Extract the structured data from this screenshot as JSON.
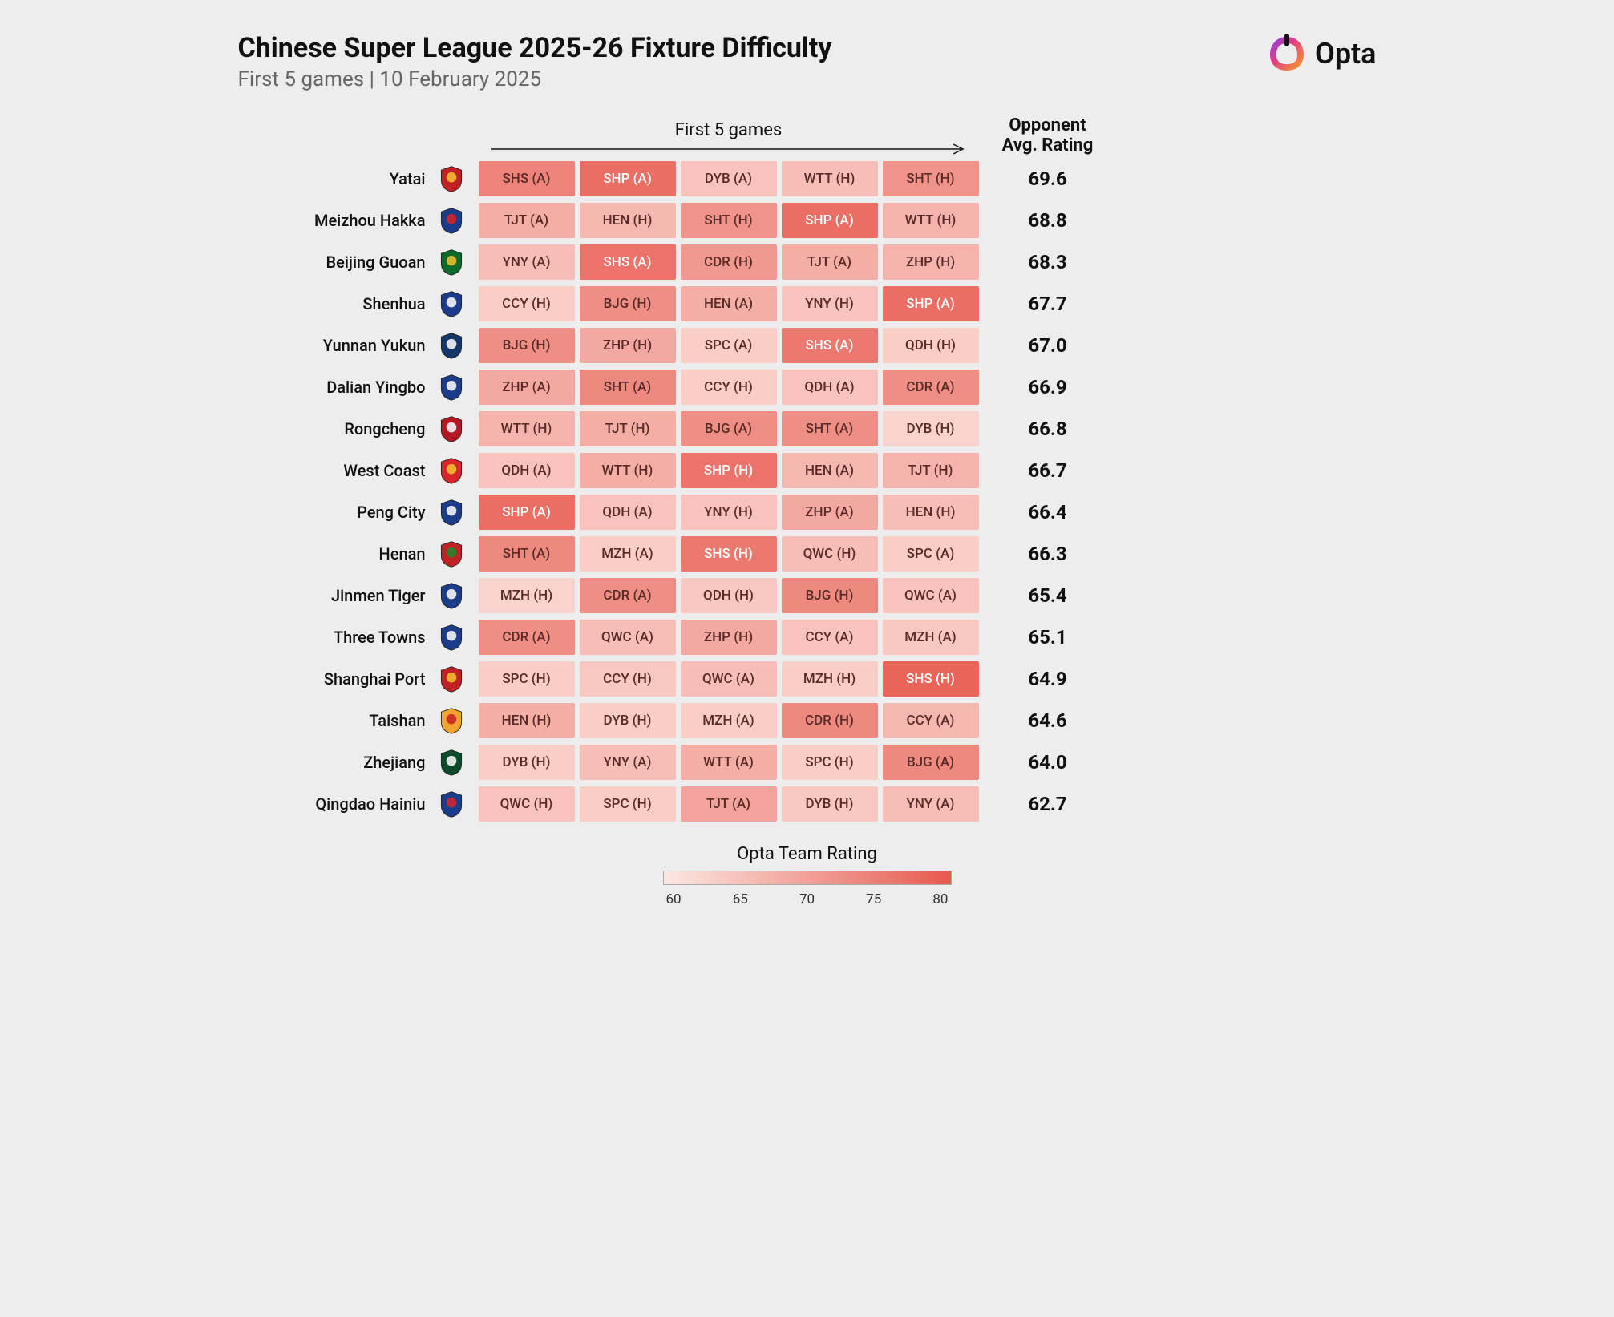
{
  "header": {
    "title": "Chinese Super League 2025-26 Fixture Difficulty",
    "subtitle": "First 5 games | 10 February 2025",
    "logo_text": "Opta"
  },
  "columns": {
    "games_header": "First 5 games",
    "avg_header_line1": "Opponent",
    "avg_header_line2": "Avg. Rating"
  },
  "color_scale": {
    "label": "Opta Team Rating",
    "min": 55,
    "max": 82,
    "ticks": [
      "60",
      "65",
      "70",
      "75",
      "80"
    ],
    "low_color": "#fce8e3",
    "high_color": "#e7594e",
    "text_dark": "#5a2a26",
    "text_light": "#ffffff",
    "light_threshold": 76
  },
  "crest_colors": {
    "yatai": {
      "main": "#c32026",
      "accent": "#f4c430"
    },
    "meizhou": {
      "main": "#1b3b8b",
      "accent": "#d22"
    },
    "beijing": {
      "main": "#0b6b2b",
      "accent": "#f4c430"
    },
    "shenhua": {
      "main": "#1b3b8b",
      "accent": "#ffffff"
    },
    "yunnan": {
      "main": "#14366b",
      "accent": "#ffffff"
    },
    "dalian": {
      "main": "#1b3b8b",
      "accent": "#ffffff"
    },
    "rongcheng": {
      "main": "#b51822",
      "accent": "#ffffff"
    },
    "westcoast": {
      "main": "#d9242b",
      "accent": "#f4c430"
    },
    "pengcity": {
      "main": "#1b3b8b",
      "accent": "#ffffff"
    },
    "henan": {
      "main": "#c32026",
      "accent": "#1b8b2b"
    },
    "jinmen": {
      "main": "#1b3b8b",
      "accent": "#ffffff"
    },
    "threetowns": {
      "main": "#1b3b8b",
      "accent": "#ffffff"
    },
    "shanghaiport": {
      "main": "#c32026",
      "accent": "#f4c430"
    },
    "taishan": {
      "main": "#f4a430",
      "accent": "#c32026"
    },
    "zhejiang": {
      "main": "#0b4b2b",
      "accent": "#ffffff"
    },
    "qingdao": {
      "main": "#1b3b8b",
      "accent": "#d9242b"
    }
  },
  "teams": [
    {
      "name": "Yatai",
      "crest": "yatai",
      "avg": "69.6",
      "fixtures": [
        {
          "label": "SHS (A)",
          "rating": 74
        },
        {
          "label": "SHP (A)",
          "rating": 78
        },
        {
          "label": "DYB (A)",
          "rating": 62
        },
        {
          "label": "WTT (H)",
          "rating": 63
        },
        {
          "label": "SHT (H)",
          "rating": 71
        }
      ]
    },
    {
      "name": "Meizhou Hakka",
      "crest": "meizhou",
      "avg": "68.8",
      "fixtures": [
        {
          "label": "TJT (A)",
          "rating": 66
        },
        {
          "label": "HEN (H)",
          "rating": 64
        },
        {
          "label": "SHT (H)",
          "rating": 71
        },
        {
          "label": "SHP (A)",
          "rating": 78
        },
        {
          "label": "WTT (H)",
          "rating": 65
        }
      ]
    },
    {
      "name": "Beijing Guoan",
      "crest": "beijing",
      "avg": "68.3",
      "fixtures": [
        {
          "label": "YNY (A)",
          "rating": 63
        },
        {
          "label": "SHS (A)",
          "rating": 77
        },
        {
          "label": "CDR (H)",
          "rating": 70
        },
        {
          "label": "TJT (A)",
          "rating": 66
        },
        {
          "label": "ZHP (H)",
          "rating": 65
        }
      ]
    },
    {
      "name": "Shenhua",
      "crest": "shenhua",
      "avg": "67.7",
      "fixtures": [
        {
          "label": "CCY (H)",
          "rating": 60
        },
        {
          "label": "BJG (H)",
          "rating": 72
        },
        {
          "label": "HEN (A)",
          "rating": 66
        },
        {
          "label": "YNY (H)",
          "rating": 62
        },
        {
          "label": "SHP (A)",
          "rating": 78
        }
      ]
    },
    {
      "name": "Yunnan Yukun",
      "crest": "yunnan",
      "avg": "67.0",
      "fixtures": [
        {
          "label": "BJG (H)",
          "rating": 72
        },
        {
          "label": "ZHP (H)",
          "rating": 67
        },
        {
          "label": "SPC (A)",
          "rating": 60
        },
        {
          "label": "SHS (A)",
          "rating": 76
        },
        {
          "label": "QDH (H)",
          "rating": 60
        }
      ]
    },
    {
      "name": "Dalian Yingbo",
      "crest": "dalian",
      "avg": "66.9",
      "fixtures": [
        {
          "label": "ZHP (A)",
          "rating": 67
        },
        {
          "label": "SHT (A)",
          "rating": 73
        },
        {
          "label": "CCY (H)",
          "rating": 60
        },
        {
          "label": "QDH (A)",
          "rating": 62
        },
        {
          "label": "CDR (A)",
          "rating": 72
        }
      ]
    },
    {
      "name": "Rongcheng",
      "crest": "rongcheng",
      "avg": "66.8",
      "fixtures": [
        {
          "label": "WTT (H)",
          "rating": 65
        },
        {
          "label": "TJT (H)",
          "rating": 66
        },
        {
          "label": "BJG (A)",
          "rating": 72
        },
        {
          "label": "SHT (A)",
          "rating": 72
        },
        {
          "label": "DYB (H)",
          "rating": 59
        }
      ]
    },
    {
      "name": "West Coast",
      "crest": "westcoast",
      "avg": "66.7",
      "fixtures": [
        {
          "label": "QDH (A)",
          "rating": 62
        },
        {
          "label": "WTT (H)",
          "rating": 66
        },
        {
          "label": "SHP (H)",
          "rating": 77
        },
        {
          "label": "HEN (A)",
          "rating": 64
        },
        {
          "label": "TJT (H)",
          "rating": 65
        }
      ]
    },
    {
      "name": "Peng City",
      "crest": "pengcity",
      "avg": "66.4",
      "fixtures": [
        {
          "label": "SHP (A)",
          "rating": 78
        },
        {
          "label": "QDH (A)",
          "rating": 62
        },
        {
          "label": "YNY (H)",
          "rating": 62
        },
        {
          "label": "ZHP (A)",
          "rating": 67
        },
        {
          "label": "HEN (H)",
          "rating": 63
        }
      ]
    },
    {
      "name": "Henan",
      "crest": "henan",
      "avg": "66.3",
      "fixtures": [
        {
          "label": "SHT (A)",
          "rating": 73
        },
        {
          "label": "MZH (A)",
          "rating": 60
        },
        {
          "label": "SHS (H)",
          "rating": 76
        },
        {
          "label": "QWC (H)",
          "rating": 63
        },
        {
          "label": "SPC (A)",
          "rating": 60
        }
      ]
    },
    {
      "name": "Jinmen Tiger",
      "crest": "jinmen",
      "avg": "65.4",
      "fixtures": [
        {
          "label": "MZH (H)",
          "rating": 59
        },
        {
          "label": "CDR (A)",
          "rating": 72
        },
        {
          "label": "QDH (H)",
          "rating": 61
        },
        {
          "label": "BJG (H)",
          "rating": 73
        },
        {
          "label": "QWC (A)",
          "rating": 62
        }
      ]
    },
    {
      "name": "Three Towns",
      "crest": "threetowns",
      "avg": "65.1",
      "fixtures": [
        {
          "label": "CDR (A)",
          "rating": 72
        },
        {
          "label": "QWC (A)",
          "rating": 63
        },
        {
          "label": "ZHP (H)",
          "rating": 67
        },
        {
          "label": "CCY (A)",
          "rating": 62
        },
        {
          "label": "MZH (A)",
          "rating": 61
        }
      ]
    },
    {
      "name": "Shanghai Port",
      "crest": "shanghaiport",
      "avg": "64.9",
      "fixtures": [
        {
          "label": "SPC (H)",
          "rating": 60
        },
        {
          "label": "CCY (H)",
          "rating": 61
        },
        {
          "label": "QWC (A)",
          "rating": 63
        },
        {
          "label": "MZH (H)",
          "rating": 60
        },
        {
          "label": "SHS (H)",
          "rating": 80
        }
      ]
    },
    {
      "name": "Taishan",
      "crest": "taishan",
      "avg": "64.6",
      "fixtures": [
        {
          "label": "HEN (H)",
          "rating": 66
        },
        {
          "label": "DYB (H)",
          "rating": 60
        },
        {
          "label": "MZH (A)",
          "rating": 60
        },
        {
          "label": "CDR (H)",
          "rating": 73
        },
        {
          "label": "CCY (A)",
          "rating": 64
        }
      ]
    },
    {
      "name": "Zhejiang",
      "crest": "zhejiang",
      "avg": "64.0",
      "fixtures": [
        {
          "label": "DYB (H)",
          "rating": 60
        },
        {
          "label": "YNY (A)",
          "rating": 63
        },
        {
          "label": "WTT (A)",
          "rating": 66
        },
        {
          "label": "SPC (H)",
          "rating": 60
        },
        {
          "label": "BJG (A)",
          "rating": 73
        }
      ]
    },
    {
      "name": "Qingdao Hainiu",
      "crest": "qingdao",
      "avg": "62.7",
      "fixtures": [
        {
          "label": "QWC (H)",
          "rating": 62
        },
        {
          "label": "SPC (H)",
          "rating": 60
        },
        {
          "label": "TJT (A)",
          "rating": 68
        },
        {
          "label": "DYB (H)",
          "rating": 61
        },
        {
          "label": "YNY (A)",
          "rating": 63
        }
      ]
    }
  ]
}
